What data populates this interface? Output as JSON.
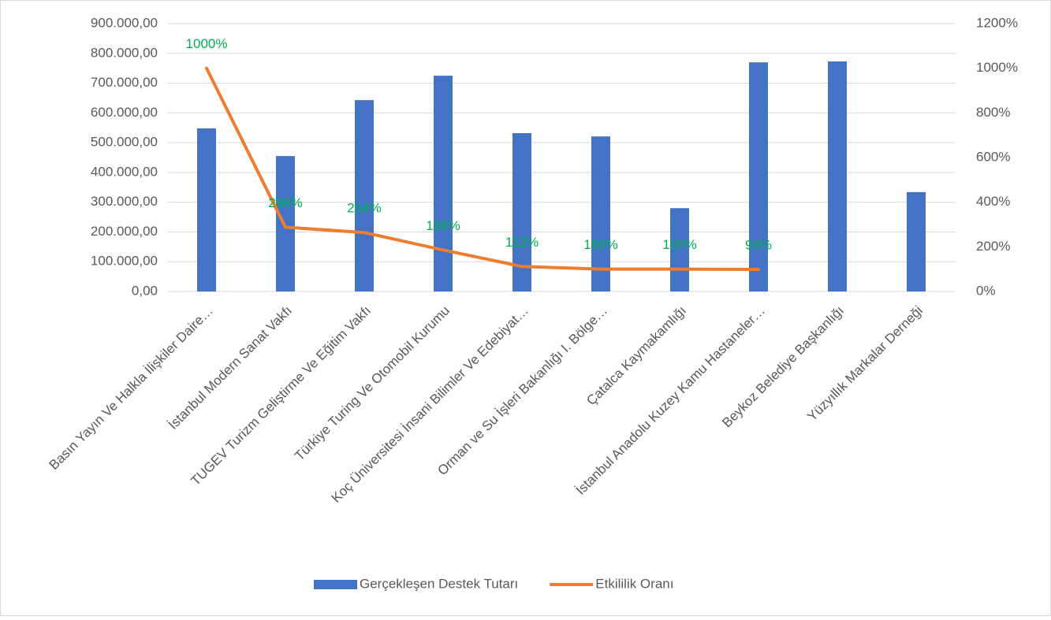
{
  "chart_data": {
    "type": "bar+line",
    "categories": [
      "Basın Yayın Ve Halkla İlişkiler Daire…",
      "İstanbul Modern Sanat Vakfı",
      "TUGEV Turizm Geliştirme Ve Eğitim Vakfı",
      "Türkiye Turing Ve Otomobil Kurumu",
      "Koç Üniversitesi İnsani Bilimler Ve Edebiyat…",
      "Orman ve Su İşleri Bakanlığı I. Bölge…",
      "Çatalca Kaymakamlığı",
      "İstanbul Anadolu Kuzey Kamu Hastaneler…",
      "Beykoz Belediye Başkanlığı",
      "Yüzyıllık Markalar Derneği"
    ],
    "series": [
      {
        "name": "Gerçekleşen Destek Tutarı",
        "type": "bar",
        "color": "#4472c4",
        "values": [
          548000,
          455000,
          643000,
          725000,
          532000,
          521000,
          280000,
          770000,
          773000,
          334000
        ]
      },
      {
        "name": "Etkililik Oranı",
        "type": "line",
        "axis": "y2",
        "color": "#ed7d31",
        "values": [
          1000,
          288,
          264,
          186,
          112,
          100,
          100,
          99,
          null,
          null
        ],
        "value_labels": [
          "1000%",
          "288%",
          "264%",
          "186%",
          "112%",
          "100%",
          "100%",
          "99%",
          null,
          null
        ],
        "label_color": "#00b050"
      }
    ],
    "ylim": [
      0,
      900000
    ],
    "yticks": [
      {
        "value": 0,
        "label": "0,00"
      },
      {
        "value": 100000,
        "label": "100.000,00"
      },
      {
        "value": 200000,
        "label": "200.000,00"
      },
      {
        "value": 300000,
        "label": "300.000,00"
      },
      {
        "value": 400000,
        "label": "400.000,00"
      },
      {
        "value": 500000,
        "label": "500.000,00"
      },
      {
        "value": 600000,
        "label": "600.000,00"
      },
      {
        "value": 700000,
        "label": "700.000,00"
      },
      {
        "value": 800000,
        "label": "800.000,00"
      },
      {
        "value": 900000,
        "label": "900.000,00"
      }
    ],
    "y2lim": [
      0,
      1200
    ],
    "y2ticks": [
      {
        "value": 0,
        "label": "0%"
      },
      {
        "value": 200,
        "label": "200%"
      },
      {
        "value": 400,
        "label": "400%"
      },
      {
        "value": 600,
        "label": "600%"
      },
      {
        "value": 800,
        "label": "800%"
      },
      {
        "value": 1000,
        "label": "1000%"
      },
      {
        "value": 1200,
        "label": "1200%"
      }
    ],
    "grid": true,
    "legend": "bottom"
  }
}
